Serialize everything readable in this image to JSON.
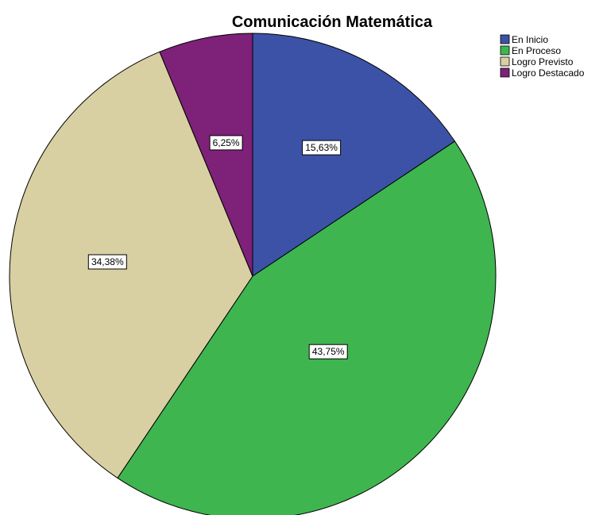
{
  "chart_data": {
    "type": "pie",
    "title": "Comunicación Matemática",
    "legend_position": "top-right",
    "categories": [
      "En Inicio",
      "En Proceso",
      "Logro Previsto",
      "Logro Destacado"
    ],
    "values": [
      15.63,
      43.75,
      34.38,
      6.25
    ],
    "value_labels": [
      "15,63%",
      "43,75%",
      "34,38%",
      "6,25%"
    ],
    "colors": [
      "#3c52a6",
      "#3fb54f",
      "#d8d0a2",
      "#7e2178"
    ],
    "start": "12 o'clock",
    "direction": "clockwise"
  }
}
